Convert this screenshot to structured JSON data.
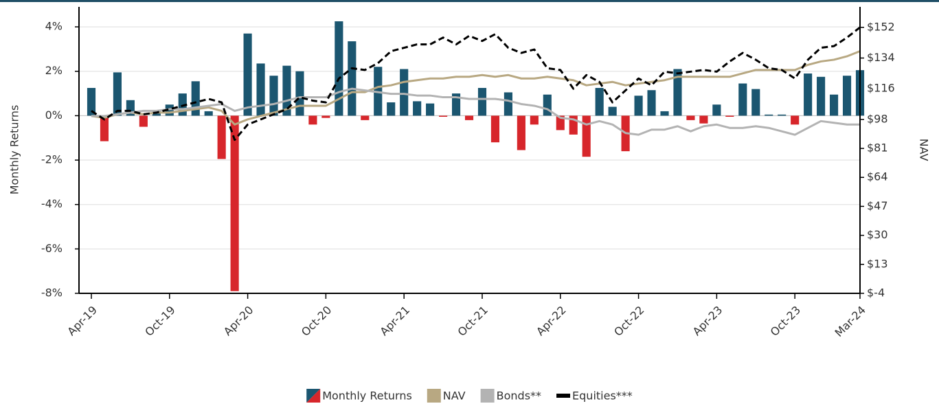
{
  "chart_data": {
    "type": "combo",
    "y_label": "Monthly Returns",
    "y2_label": "NAV",
    "categories": [
      "Apr-19",
      null,
      null,
      null,
      null,
      null,
      "Oct-19",
      null,
      null,
      null,
      null,
      null,
      "Apr-20",
      null,
      null,
      null,
      null,
      null,
      "Oct-20",
      null,
      null,
      null,
      null,
      null,
      "Apr-21",
      null,
      null,
      null,
      null,
      null,
      "Oct-21",
      null,
      null,
      null,
      null,
      null,
      "Apr-22",
      null,
      null,
      null,
      null,
      null,
      "Oct-22",
      null,
      null,
      null,
      null,
      null,
      "Apr-23",
      null,
      null,
      null,
      null,
      null,
      "Oct-23",
      null,
      null,
      null,
      null,
      "Mar-24"
    ],
    "ylim": [
      -8,
      4.9
    ],
    "yticks": [
      {
        "value": 4,
        "label": "4%"
      },
      {
        "value": 2,
        "label": "2%"
      },
      {
        "value": 0,
        "label": "0%"
      },
      {
        "value": -2,
        "label": "-2%"
      },
      {
        "value": -4,
        "label": "-4%"
      },
      {
        "value": -6,
        "label": "-6%"
      },
      {
        "value": -8,
        "label": "-8%"
      }
    ],
    "y2lim": [
      -4,
      164
    ],
    "y2ticks": [
      {
        "value": 152,
        "label": "$152"
      },
      {
        "value": 134,
        "label": "$134"
      },
      {
        "value": 116,
        "label": "$116"
      },
      {
        "value": 98,
        "label": "$98"
      },
      {
        "value": 81,
        "label": "$81"
      },
      {
        "value": 64,
        "label": "$64"
      },
      {
        "value": 47,
        "label": "$47"
      },
      {
        "value": 30,
        "label": "$30"
      },
      {
        "value": 13,
        "label": "$13"
      },
      {
        "value": -4,
        "label": "$-4"
      }
    ],
    "grid": true,
    "legend": "bottom",
    "series": [
      {
        "name": "Monthly Returns",
        "type": "bar",
        "color": "#1b5670",
        "negative_color": "#d7262b",
        "values": [
          1.25,
          -1.15,
          1.95,
          0.7,
          -0.5,
          0.25,
          0.5,
          1.0,
          1.55,
          0.2,
          -1.95,
          -7.9,
          3.7,
          2.35,
          1.8,
          2.25,
          2.0,
          -0.4,
          -0.1,
          4.25,
          3.35,
          -0.2,
          2.2,
          0.6,
          2.1,
          0.65,
          0.55,
          -0.05,
          1.0,
          -0.2,
          1.25,
          -1.2,
          1.05,
          -1.55,
          -0.4,
          0.95,
          -0.65,
          -0.85,
          -1.85,
          1.25,
          0.4,
          -1.6,
          0.9,
          1.15,
          0.2,
          2.1,
          -0.2,
          -0.35,
          0.5,
          -0.05,
          1.45,
          1.2,
          0.05,
          0.05,
          -0.4,
          1.9,
          1.75,
          0.95,
          1.8,
          2.05
        ]
      },
      {
        "name": "NAV",
        "type": "line",
        "axis": "y2",
        "color": "#b8a882",
        "values": [
          100,
          99,
          101,
          102,
          101,
          102,
          102,
          103,
          104,
          105,
          103,
          95,
          98,
          100,
          102,
          104,
          106,
          106,
          106,
          110,
          114,
          114,
          117,
          118,
          120,
          121,
          122,
          122,
          123,
          123,
          124,
          123,
          124,
          122,
          122,
          123,
          122,
          121,
          118,
          119,
          120,
          118,
          119,
          120,
          121,
          123,
          123,
          123,
          123,
          123,
          125,
          127,
          127,
          127,
          127,
          130,
          132,
          133,
          135,
          138
        ]
      },
      {
        "name": "Bonds**",
        "type": "line",
        "axis": "y2",
        "color": "#b3b3b3",
        "values": [
          100,
          100,
          101,
          102,
          103,
          103,
          104,
          104,
          105,
          106,
          107,
          103,
          105,
          106,
          107,
          109,
          111,
          111,
          111,
          114,
          116,
          115,
          114,
          113,
          113,
          112,
          112,
          111,
          111,
          110,
          110,
          110,
          109,
          107,
          106,
          104,
          99,
          98,
          95,
          97,
          95,
          90,
          89,
          92,
          92,
          94,
          91,
          94,
          95,
          93,
          93,
          94,
          93,
          91,
          89,
          93,
          97,
          96,
          95,
          95
        ]
      },
      {
        "name": "Equities***",
        "type": "line",
        "axis": "y2",
        "color": "#000000",
        "dashed": true,
        "values": [
          103,
          98,
          103,
          103,
          101,
          102,
          104,
          106,
          108,
          110,
          108,
          86,
          95,
          98,
          101,
          104,
          111,
          109,
          108,
          122,
          128,
          127,
          131,
          138,
          140,
          142,
          142,
          146,
          142,
          147,
          144,
          148,
          140,
          137,
          139,
          128,
          127,
          116,
          124,
          120,
          108,
          115,
          122,
          118,
          126,
          125,
          126,
          127,
          126,
          132,
          137,
          133,
          128,
          127,
          122,
          133,
          140,
          141,
          146,
          152
        ]
      }
    ]
  }
}
